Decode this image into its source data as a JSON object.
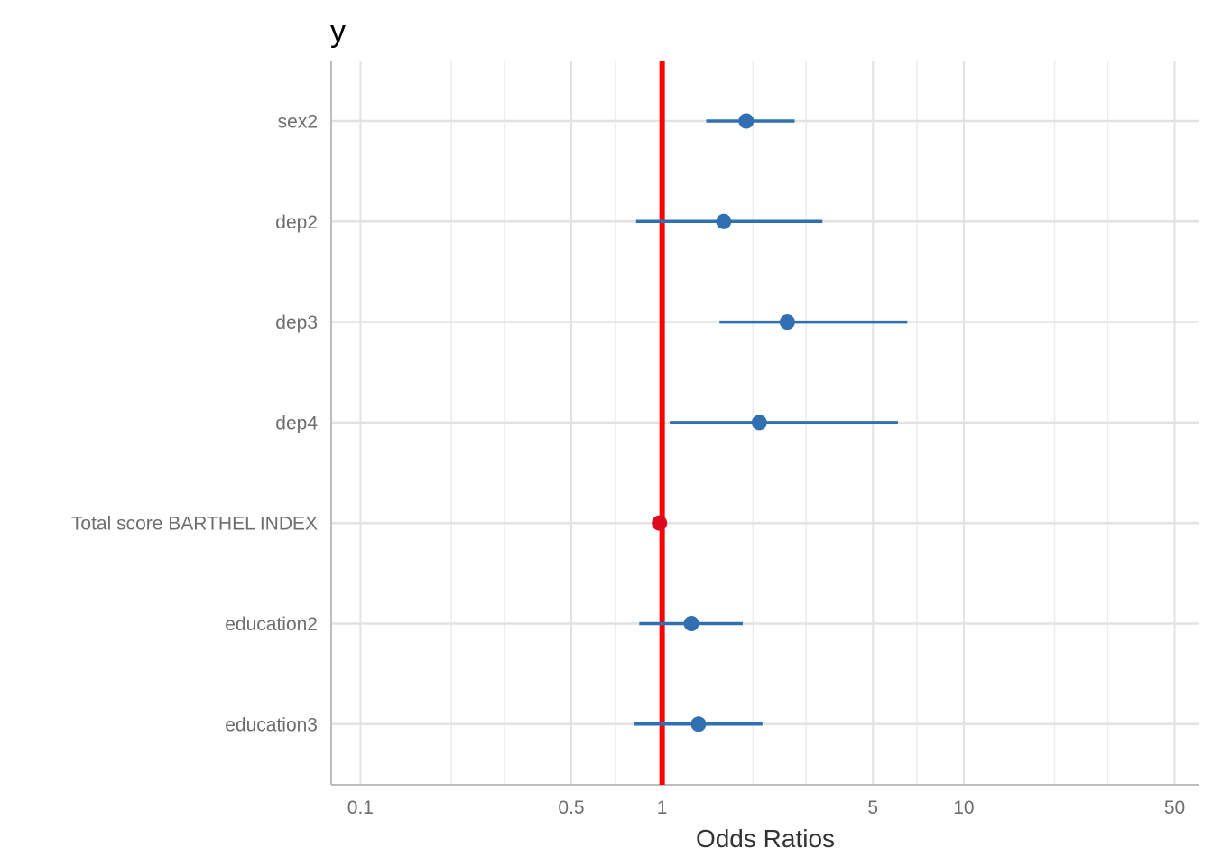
{
  "chart_data": {
    "type": "scatter",
    "title": "y",
    "xlabel": "Odds Ratios",
    "ylabel": "",
    "x_scale": "log",
    "xlim": [
      0.08,
      60
    ],
    "x_ticks": [
      {
        "value": 0.1,
        "label": "0.1"
      },
      {
        "value": 0.5,
        "label": "0.5"
      },
      {
        "value": 1,
        "label": "1"
      },
      {
        "value": 5,
        "label": "5"
      },
      {
        "value": 10,
        "label": "10"
      },
      {
        "value": 50,
        "label": "50"
      }
    ],
    "x_minor_gridlines": [
      0.2,
      0.3,
      0.7,
      2,
      3,
      7,
      20,
      30
    ],
    "reference_line": {
      "x": 1,
      "color": "#ff0000"
    },
    "grid": true,
    "legend": "none",
    "colors": {
      "positive": "#3070b0",
      "negative": "#dd0a1e"
    },
    "terms": [
      {
        "label": "sex2",
        "estimate": 1.9,
        "ci_low": 1.4,
        "ci_high": 2.75,
        "sign": "positive"
      },
      {
        "label": "dep2",
        "estimate": 1.6,
        "ci_low": 0.82,
        "ci_high": 3.4,
        "sign": "positive"
      },
      {
        "label": "dep3",
        "estimate": 2.6,
        "ci_low": 1.55,
        "ci_high": 6.5,
        "sign": "positive"
      },
      {
        "label": "dep4",
        "estimate": 2.1,
        "ci_low": 1.06,
        "ci_high": 6.05,
        "sign": "positive"
      },
      {
        "label": "Total score BARTHEL INDEX",
        "estimate": 0.98,
        "ci_low": 0.975,
        "ci_high": 0.985,
        "sign": "negative"
      },
      {
        "label": "education2",
        "estimate": 1.25,
        "ci_low": 0.84,
        "ci_high": 1.85,
        "sign": "positive"
      },
      {
        "label": "education3",
        "estimate": 1.32,
        "ci_low": 0.81,
        "ci_high": 2.15,
        "sign": "positive"
      }
    ]
  }
}
